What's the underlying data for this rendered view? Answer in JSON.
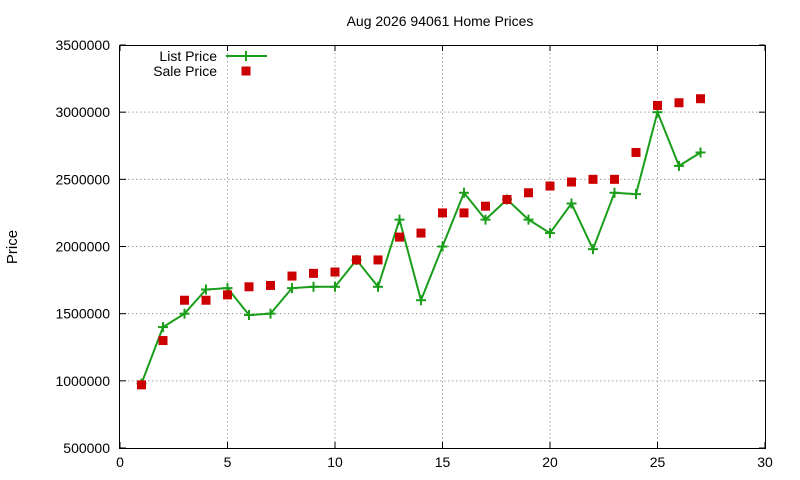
{
  "chart_data": {
    "type": "line",
    "title": "Aug 2026 94061 Home Prices",
    "xlabel": "",
    "ylabel": "Price",
    "xlim": [
      0,
      30
    ],
    "ylim": [
      500000,
      3500000
    ],
    "xticks": [
      0,
      5,
      10,
      15,
      20,
      25,
      30
    ],
    "yticks": [
      500000,
      1000000,
      1500000,
      2000000,
      2500000,
      3000000,
      3500000
    ],
    "grid": true,
    "legend_position": "top-left",
    "series": [
      {
        "name": "List Price",
        "style": "line+plus",
        "color": "#1a9e1a",
        "x": [
          1,
          2,
          3,
          4,
          5,
          6,
          7,
          8,
          9,
          10,
          11,
          12,
          13,
          14,
          15,
          16,
          17,
          18,
          19,
          20,
          21,
          22,
          23,
          24,
          25,
          26,
          27
        ],
        "y": [
          980000,
          1400000,
          1500000,
          1680000,
          1690000,
          1490000,
          1500000,
          1690000,
          1700000,
          1700000,
          1900000,
          1700000,
          2200000,
          1600000,
          2000000,
          2400000,
          2200000,
          2350000,
          2200000,
          2100000,
          2320000,
          1980000,
          2400000,
          2390000,
          3000000,
          2600000,
          2700000
        ]
      },
      {
        "name": "Sale Price",
        "style": "square",
        "color": "#cc0000",
        "x": [
          1,
          2,
          3,
          4,
          5,
          6,
          7,
          8,
          9,
          10,
          11,
          12,
          13,
          14,
          15,
          16,
          17,
          18,
          19,
          20,
          21,
          22,
          23,
          24,
          25,
          26,
          27
        ],
        "y": [
          970000,
          1300000,
          1600000,
          1600000,
          1640000,
          1700000,
          1710000,
          1780000,
          1800000,
          1810000,
          1900000,
          1900000,
          2070000,
          2100000,
          2250000,
          2250000,
          2300000,
          2350000,
          2400000,
          2450000,
          2480000,
          2500000,
          2500000,
          2700000,
          3050000,
          3070000,
          3100000
        ]
      }
    ]
  }
}
